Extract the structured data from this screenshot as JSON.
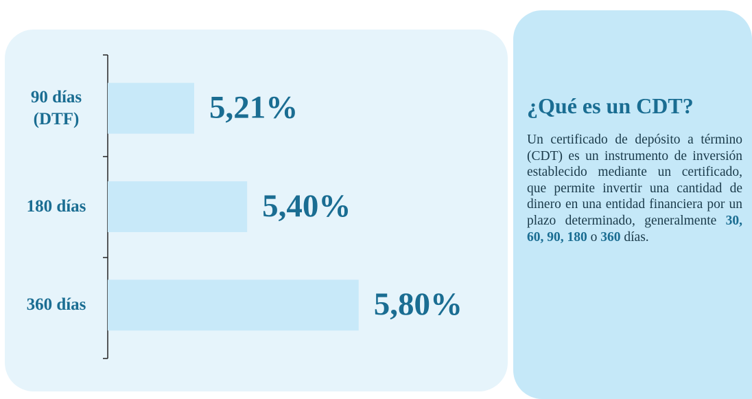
{
  "chart_data": {
    "type": "bar",
    "orientation": "horizontal",
    "categories": [
      "90 días (DTF)",
      "180 días",
      "360 días"
    ],
    "values": [
      5.21,
      5.4,
      5.8
    ],
    "value_labels": [
      "5,21%",
      "5,40%",
      "5,80%"
    ],
    "color": "#c8e9f9",
    "label_color": "#1a6d92",
    "xlim": [
      4.9,
      6.0
    ]
  },
  "panel": {
    "title": "¿Qué es un CDT?",
    "body": [
      "Un certificado de depósito a término (CDT) es un instrumento de inversión establecido mediante un certificado, que permite invertir una cantidad de dinero en una entidad financiera por un plazo determinado, generalmente",
      "30, 60, 90, 180",
      "o",
      "360",
      "días."
    ]
  }
}
